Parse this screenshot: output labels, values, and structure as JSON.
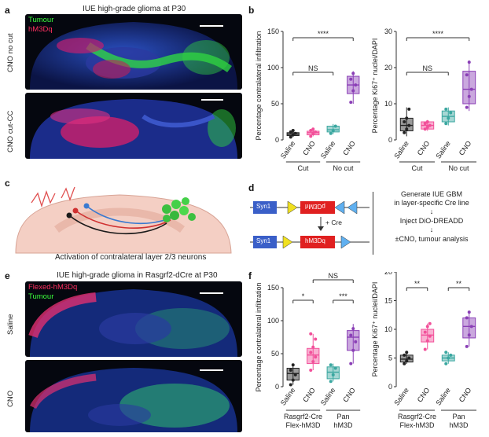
{
  "panels": {
    "a": {
      "letter": "a",
      "title": "IUE high-grade glioma at P30",
      "legend": [
        "Tumour",
        "hM3Dq"
      ],
      "legend_colors": [
        "#3cff3c",
        "#ff3060"
      ],
      "row_labels": [
        "CNO no cut",
        "CNO cut-CC"
      ]
    },
    "c": {
      "letter": "c",
      "caption": "Activation of contralateral layer 2/3 neurons"
    },
    "d": {
      "letter": "d",
      "construct_top": [
        "Syn1",
        "hM3Dq"
      ],
      "construct_bottom": [
        "Syn1",
        "hM3Dq"
      ],
      "cre_label": "+ Cre",
      "steps": [
        "Generate IUE GBM",
        "in layer-specific Cre line",
        "Inject DiO-DREADD",
        "±CNO, tumour analysis"
      ]
    },
    "e": {
      "letter": "e",
      "title": "IUE high-grade glioma in Rasgrf2-dCre at P30",
      "legend": [
        "Flexed-hM3Dq",
        "Tumour"
      ],
      "legend_colors": [
        "#ff3060",
        "#3cff3c"
      ],
      "row_labels": [
        "Saline",
        "CNO"
      ]
    }
  },
  "colors": {
    "black": "#222222",
    "pink": "#f2509a",
    "teal": "#3aa7a0",
    "purple": "#8a3fb6"
  },
  "chart_data": [
    {
      "panel": "b",
      "type": "box",
      "ylabel": "Percentage contralateral infiltration",
      "ylim": [
        0,
        150
      ],
      "yticks": [
        0,
        50,
        100,
        150
      ],
      "categories": [
        "Saline",
        "CNO",
        "Saline",
        "CNO"
      ],
      "groups": [
        "Cut",
        "No cut"
      ],
      "colors": [
        "#222222",
        "#f2509a",
        "#3aa7a0",
        "#8a3fb6"
      ],
      "boxes": [
        {
          "q1": 6,
          "median": 8,
          "q3": 10,
          "low": 4,
          "high": 13
        },
        {
          "q1": 7,
          "median": 10,
          "q3": 12,
          "low": 5,
          "high": 15
        },
        {
          "q1": 11,
          "median": 14,
          "q3": 19,
          "low": 8,
          "high": 22
        },
        {
          "q1": 64,
          "median": 76,
          "q3": 88,
          "low": 50,
          "high": 95
        }
      ],
      "points": [
        [
          4,
          7,
          9,
          11,
          13
        ],
        [
          5,
          9,
          11,
          13,
          15
        ],
        [
          9,
          13,
          19
        ],
        [
          52,
          68,
          76,
          84,
          92
        ]
      ],
      "annotations": [
        {
          "text": "****",
          "from": 0,
          "to": 3
        },
        {
          "text": "NS",
          "from": 0,
          "to": 2
        }
      ]
    },
    {
      "panel": "b",
      "type": "box",
      "ylabel": "Percentage Ki67⁺ nuclei/DAPI",
      "ylim": [
        0,
        30
      ],
      "yticks": [
        0,
        10,
        20,
        30
      ],
      "categories": [
        "Saline",
        "CNO",
        "Saline",
        "CNO"
      ],
      "groups": [
        "Cut",
        "No cut"
      ],
      "colors": [
        "#222222",
        "#f2509a",
        "#3aa7a0",
        "#8a3fb6"
      ],
      "boxes": [
        {
          "q1": 2.5,
          "median": 4,
          "q3": 6,
          "low": 1,
          "high": 9
        },
        {
          "q1": 3,
          "median": 4,
          "q3": 5,
          "low": 2.5,
          "high": 5.5
        },
        {
          "q1": 5,
          "median": 6.5,
          "q3": 8,
          "low": 4,
          "high": 9
        },
        {
          "q1": 10,
          "median": 14,
          "q3": 19,
          "low": 8,
          "high": 22
        }
      ],
      "points": [
        [
          2,
          3,
          4,
          5,
          6,
          8.5
        ],
        [
          3,
          3.5,
          4,
          4.5,
          5
        ],
        [
          4.5,
          6,
          7.5,
          8.5
        ],
        [
          9,
          12,
          14,
          18,
          21.5
        ]
      ],
      "annotations": [
        {
          "text": "****",
          "from": 0,
          "to": 3
        },
        {
          "text": "NS",
          "from": 0,
          "to": 2
        }
      ]
    },
    {
      "panel": "f",
      "type": "box",
      "ylabel": "Percentage contralateral infiltration",
      "ylim": [
        0,
        150
      ],
      "yticks": [
        0,
        50,
        100,
        150
      ],
      "categories": [
        "Saline",
        "CNO",
        "Saline",
        "CNO"
      ],
      "groups": [
        "Rasgrf2-Cre\nFlex-hM3D",
        "Pan\nhM3D"
      ],
      "colors": [
        "#222222",
        "#f2509a",
        "#3aa7a0",
        "#8a3fb6"
      ],
      "boxes": [
        {
          "q1": 10,
          "median": 20,
          "q3": 28,
          "low": 3,
          "high": 35
        },
        {
          "q1": 35,
          "median": 48,
          "q3": 58,
          "low": 25,
          "high": 80
        },
        {
          "q1": 12,
          "median": 22,
          "q3": 30,
          "low": 8,
          "high": 35
        },
        {
          "q1": 55,
          "median": 75,
          "q3": 85,
          "low": 35,
          "high": 95
        }
      ],
      "points": [
        [
          3,
          10,
          18,
          25,
          33
        ],
        [
          25,
          38,
          45,
          52,
          60,
          72,
          80
        ],
        [
          8,
          18,
          28,
          33
        ],
        [
          35,
          55,
          68,
          78,
          88
        ]
      ],
      "annotations": [
        {
          "text": "*",
          "from": 0,
          "to": 1
        },
        {
          "text": "***",
          "from": 2,
          "to": 3
        },
        {
          "text": "NS",
          "from": 1,
          "to": 3
        }
      ]
    },
    {
      "panel": "f",
      "type": "box",
      "ylabel": "Percentage Ki67⁺ nuclei/DAPI",
      "ylim": [
        0,
        20
      ],
      "yticks": [
        0,
        5,
        10,
        15,
        20
      ],
      "categories": [
        "Saline",
        "CNO",
        "Saline",
        "CNO"
      ],
      "groups": [
        "Rasgrf2-Cre\nFlex-hM3D",
        "Pan\nhM3D"
      ],
      "colors": [
        "#222222",
        "#f2509a",
        "#3aa7a0",
        "#8a3fb6"
      ],
      "boxes": [
        {
          "q1": 4.3,
          "median": 4.8,
          "q3": 5.5,
          "low": 4,
          "high": 6
        },
        {
          "q1": 7.8,
          "median": 9,
          "q3": 10,
          "low": 6.5,
          "high": 11
        },
        {
          "q1": 4.5,
          "median": 5,
          "q3": 5.5,
          "low": 4,
          "high": 6
        },
        {
          "q1": 8.5,
          "median": 10.5,
          "q3": 12,
          "low": 7,
          "high": 13
        }
      ],
      "points": [
        [
          4,
          4.5,
          5,
          5.5,
          6
        ],
        [
          6.5,
          8,
          8.8,
          9.5,
          10.5,
          11
        ],
        [
          4,
          5,
          5.5,
          6
        ],
        [
          7,
          9,
          10.5,
          12,
          13
        ]
      ],
      "annotations": [
        {
          "text": "**",
          "from": 0,
          "to": 1
        },
        {
          "text": "**",
          "from": 2,
          "to": 3
        }
      ]
    }
  ]
}
